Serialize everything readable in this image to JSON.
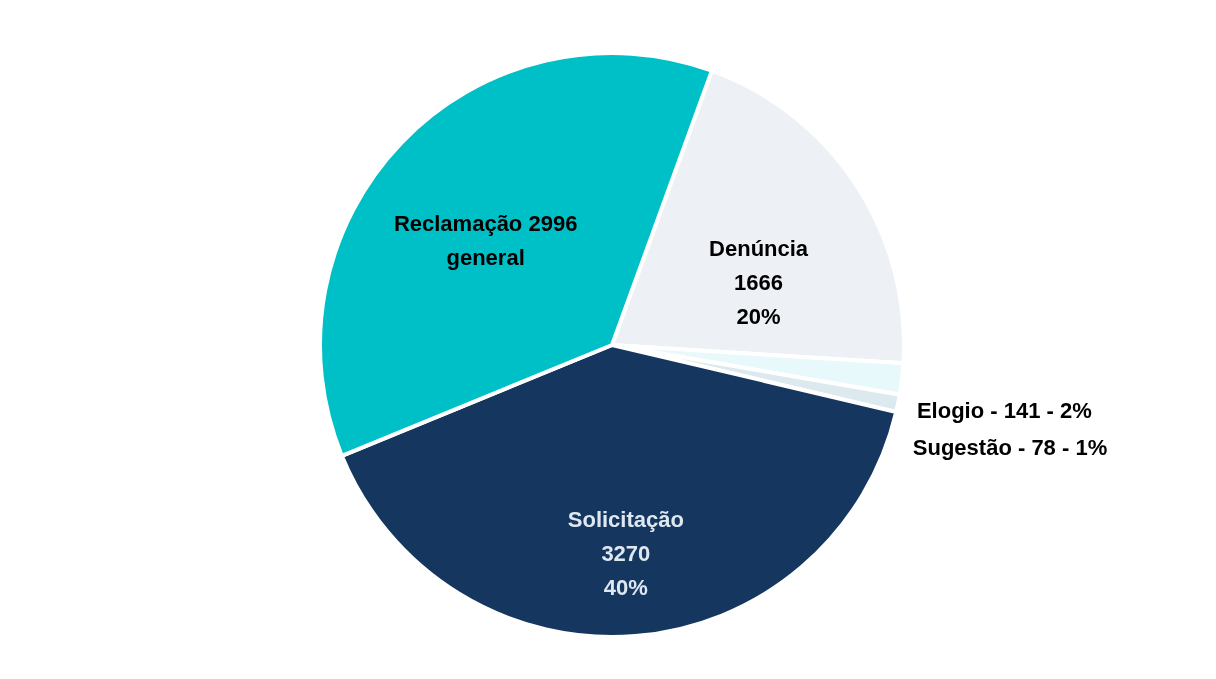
{
  "chart_data": {
    "type": "pie",
    "categories": [
      "Denúncia",
      "Elogio",
      "Sugestão",
      "Solicitação",
      "Reclamação"
    ],
    "values": [
      1666,
      141,
      78,
      3270,
      2996
    ],
    "colors": [
      "#edf0f5",
      "#e8f9fb",
      "#dce9ee",
      "#15365f",
      "#00c0c7"
    ],
    "value_labels": [
      "\n1666\n20%",
      "141 - 2%",
      "78 - 1%",
      "\n3270\n40%",
      " 2996\ngeneral"
    ],
    "legend": false
  }
}
